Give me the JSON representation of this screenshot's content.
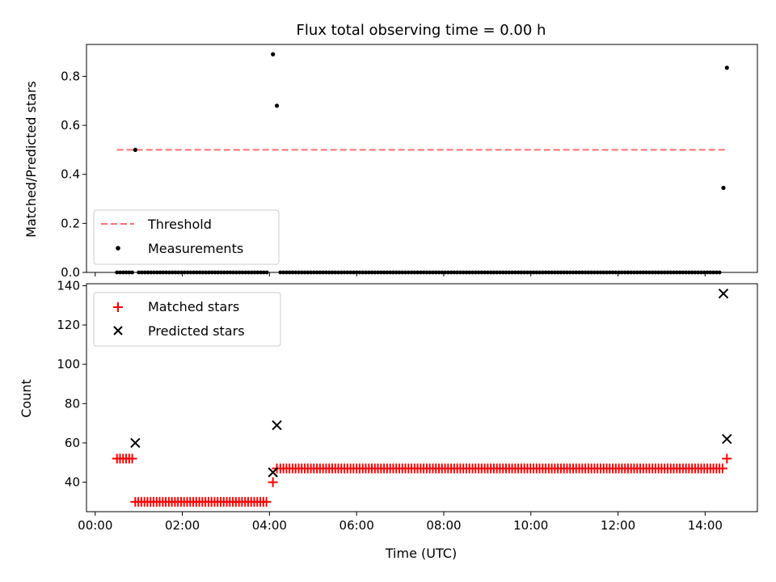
{
  "chart_data": [
    {
      "type": "line",
      "title": "Flux total observing time = 0.00 h",
      "xlabel": "",
      "ylabel": "Matched/Predicted stars",
      "x_unit": "hours (UTC)",
      "xlim": [
        -0.2,
        15.2
      ],
      "ylim": [
        0.0,
        0.93
      ],
      "xticks": [
        0,
        2,
        4,
        6,
        8,
        10,
        12,
        14
      ],
      "yticks": [
        0.0,
        0.2,
        0.4,
        0.6,
        0.8
      ],
      "ytick_labels": [
        "0.0",
        "0.2",
        "0.4",
        "0.6",
        "0.8"
      ],
      "show_xtick_labels": false,
      "grid": false,
      "legend": {
        "placement": "lower-left",
        "entries": [
          "Threshold",
          "Measurements"
        ]
      },
      "series": [
        {
          "name": "Threshold",
          "kind": "dashed-line",
          "color": "#ff7070",
          "x": [
            0.5,
            14.5
          ],
          "y": [
            0.5,
            0.5
          ]
        },
        {
          "name": "Measurements",
          "kind": "scatter-dot",
          "color": "#000000",
          "zero_runs": [
            [
              0.5,
              0.85,
              0.07
            ],
            [
              1.0,
              4.0,
              0.07
            ],
            [
              4.25,
              14.35,
              0.07
            ]
          ],
          "points": [
            {
              "x": 0.92,
              "y": 0.5
            },
            {
              "x": 4.08,
              "y": 0.89
            },
            {
              "x": 4.17,
              "y": 0.68
            },
            {
              "x": 14.42,
              "y": 0.345
            },
            {
              "x": 14.5,
              "y": 0.835
            }
          ]
        }
      ]
    },
    {
      "type": "scatter",
      "title": "",
      "xlabel": "Time (UTC)",
      "ylabel": "Count",
      "x_unit": "hours (UTC)",
      "xlim": [
        -0.2,
        15.2
      ],
      "ylim": [
        25,
        141
      ],
      "xticks": [
        0,
        2,
        4,
        6,
        8,
        10,
        12,
        14
      ],
      "xtick_labels": [
        "00:00",
        "02:00",
        "04:00",
        "06:00",
        "08:00",
        "10:00",
        "12:00",
        "14:00"
      ],
      "yticks": [
        40,
        60,
        80,
        100,
        120,
        140
      ],
      "ytick_labels": [
        "40",
        "60",
        "80",
        "100",
        "120",
        "140"
      ],
      "grid": false,
      "legend": {
        "placement": "upper-left",
        "entries": [
          "Matched stars",
          "Predicted stars"
        ]
      },
      "series": [
        {
          "name": "Matched stars",
          "marker": "plus",
          "color": "#ff0000",
          "runs": [
            {
              "x_from": 0.5,
              "x_to": 0.85,
              "step": 0.07,
              "y": 52
            },
            {
              "x_from": 0.92,
              "x_to": 3.95,
              "step": 0.07,
              "y": 30
            },
            {
              "x_from": 4.25,
              "x_to": 14.4,
              "step": 0.07,
              "y": 47
            }
          ],
          "points": [
            {
              "x": 4.08,
              "y": 40
            },
            {
              "x": 4.17,
              "y": 47
            },
            {
              "x": 14.5,
              "y": 52
            }
          ]
        },
        {
          "name": "Predicted stars",
          "marker": "x",
          "color": "#000000",
          "points": [
            {
              "x": 0.92,
              "y": 60
            },
            {
              "x": 4.08,
              "y": 45
            },
            {
              "x": 4.17,
              "y": 69
            },
            {
              "x": 14.42,
              "y": 136
            },
            {
              "x": 14.5,
              "y": 62
            }
          ]
        }
      ]
    }
  ]
}
